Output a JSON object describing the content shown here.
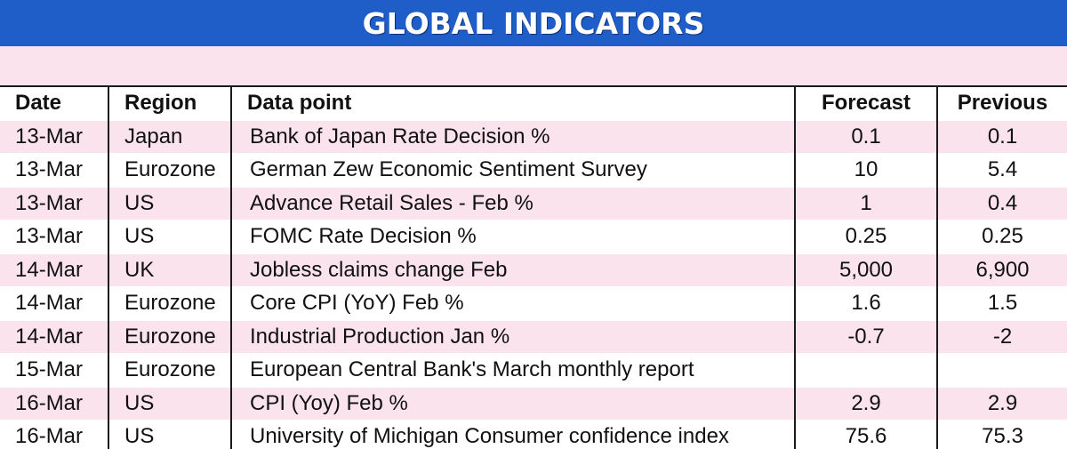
{
  "title": "GLOBAL INDICATORS",
  "colors": {
    "title_bar": "#1f5ec9",
    "title_text": "#ffffff",
    "stripe": "#fae3ec",
    "rule": "#1a1a1a"
  },
  "table": {
    "headers": {
      "date": "Date",
      "region": "Region",
      "data_point": "Data point",
      "forecast": "Forecast",
      "previous": "Previous"
    },
    "rows": [
      {
        "date": "13-Mar",
        "region": "Japan",
        "data_point": "Bank of Japan Rate Decision %",
        "forecast": "0.1",
        "previous": "0.1"
      },
      {
        "date": "13-Mar",
        "region": "Eurozone",
        "data_point": "German Zew Economic Sentiment Survey",
        "forecast": "10",
        "previous": "5.4"
      },
      {
        "date": "13-Mar",
        "region": "US",
        "data_point": "Advance Retail Sales - Feb %",
        "forecast": "1",
        "previous": "0.4"
      },
      {
        "date": "13-Mar",
        "region": "US",
        "data_point": "FOMC Rate Decision %",
        "forecast": "0.25",
        "previous": "0.25"
      },
      {
        "date": "14-Mar",
        "region": "UK",
        "data_point": "Jobless claims change Feb",
        "forecast": "5,000",
        "previous": "6,900"
      },
      {
        "date": "14-Mar",
        "region": "Eurozone",
        "data_point": "Core CPI (YoY) Feb %",
        "forecast": "1.6",
        "previous": "1.5"
      },
      {
        "date": "14-Mar",
        "region": "Eurozone",
        "data_point": "Industrial Production  Jan %",
        "forecast": "-0.7",
        "previous": "-2"
      },
      {
        "date": "15-Mar",
        "region": "Eurozone",
        "data_point": "European Central Bank's March monthly report",
        "forecast": "",
        "previous": ""
      },
      {
        "date": "16-Mar",
        "region": "US",
        "data_point": "CPI (Yoy) Feb %",
        "forecast": "2.9",
        "previous": "2.9"
      },
      {
        "date": "16-Mar",
        "region": "US",
        "data_point": "University of Michigan Consumer confidence index",
        "forecast": "75.6",
        "previous": "75.3"
      }
    ]
  }
}
